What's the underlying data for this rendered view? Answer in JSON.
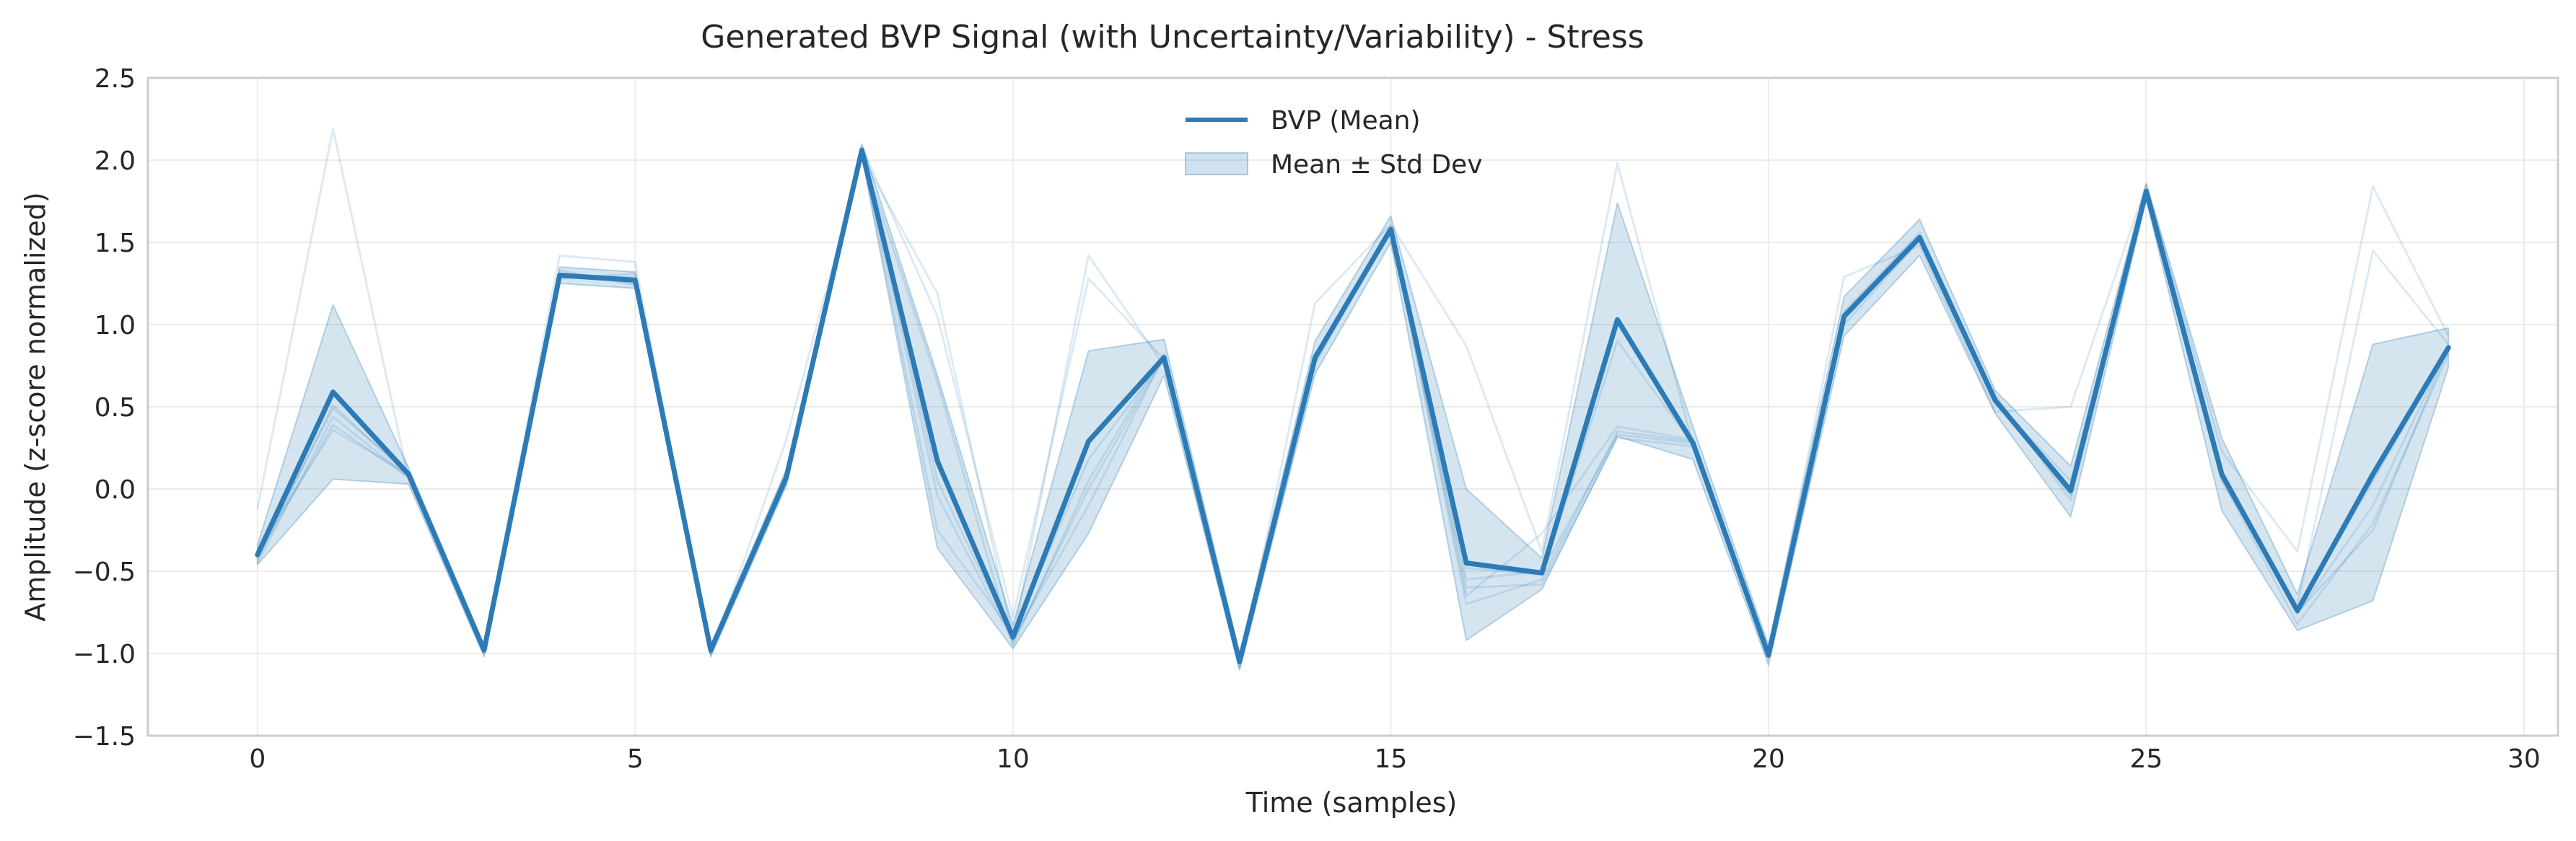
{
  "chart_data": {
    "type": "line",
    "title": "Generated BVP Signal (with Uncertainty/Variability) - Stress",
    "xlabel": "Time (samples)",
    "ylabel": "Amplitude (z-score normalized)",
    "xlim": [
      -1.45,
      30.45
    ],
    "ylim": [
      -1.5,
      2.5
    ],
    "xticks": [
      0,
      5,
      10,
      15,
      20,
      25,
      30
    ],
    "xtick_labels": [
      "0",
      "5",
      "10",
      "15",
      "20",
      "25",
      "30"
    ],
    "yticks": [
      -1.5,
      -1.0,
      -0.5,
      0.0,
      0.5,
      1.0,
      1.5,
      2.0,
      2.5
    ],
    "ytick_labels": [
      "−1.5",
      "−1.0",
      "−0.5",
      "0.0",
      "0.5",
      "1.0",
      "1.5",
      "2.0",
      "2.5"
    ],
    "grid": true,
    "legend_position": "top-center",
    "x": [
      0,
      1,
      2,
      3,
      4,
      5,
      6,
      7,
      8,
      9,
      10,
      11,
      12,
      13,
      14,
      15,
      16,
      17,
      18,
      19,
      20,
      21,
      22,
      23,
      24,
      25,
      26,
      27,
      28,
      29
    ],
    "series": [
      {
        "name": "BVP (Mean)",
        "color": "#2c7bb6",
        "values": [
          -0.4,
          0.59,
          0.09,
          -0.98,
          1.3,
          1.27,
          -0.98,
          0.07,
          2.06,
          0.17,
          -0.9,
          0.29,
          0.8,
          -1.05,
          0.8,
          1.58,
          -0.45,
          -0.51,
          1.03,
          0.28,
          -1.01,
          1.05,
          1.53,
          0.54,
          -0.01,
          1.81,
          0.09,
          -0.74,
          0.09,
          0.86
        ]
      },
      {
        "name": "Mean ± Std Dev",
        "type": "band",
        "color": "#2c7bb6",
        "upper": [
          -0.34,
          1.12,
          0.13,
          -0.95,
          1.35,
          1.32,
          -0.95,
          0.12,
          2.1,
          0.69,
          -0.83,
          0.84,
          0.91,
          -1.0,
          0.9,
          1.66,
          0.0,
          -0.42,
          1.74,
          0.38,
          -0.95,
          1.17,
          1.64,
          0.6,
          0.14,
          1.86,
          0.31,
          -0.64,
          0.88,
          0.98
        ],
        "lower": [
          -0.46,
          0.06,
          0.03,
          -1.02,
          1.25,
          1.22,
          -1.02,
          0.02,
          2.02,
          -0.36,
          -0.97,
          -0.27,
          0.69,
          -1.1,
          0.7,
          1.5,
          -0.92,
          -0.61,
          0.32,
          0.18,
          -1.07,
          0.93,
          1.42,
          0.46,
          -0.17,
          1.76,
          -0.13,
          -0.86,
          -0.68,
          0.74
        ]
      }
    ],
    "samples": [
      [
        -0.12,
        2.19,
        0.06,
        -0.97,
        1.42,
        1.38,
        -1.01,
        0.3,
        2.02,
        1.19,
        -0.91,
        1.42,
        0.75,
        -1.09,
        1.13,
        1.61,
        0.87,
        -0.38,
        1.98,
        0.27,
        -0.99,
        1.29,
        1.48,
        0.47,
        0.5,
        1.85,
        0.23,
        -0.38,
        1.84,
        0.93
      ],
      [
        -0.45,
        0.44,
        0.07,
        -0.99,
        1.28,
        1.31,
        -1.0,
        0.05,
        2.08,
        1.05,
        -0.78,
        1.28,
        0.79,
        -1.08,
        0.82,
        1.57,
        -0.65,
        -0.27,
        0.38,
        0.3,
        -1.02,
        1.08,
        1.56,
        0.53,
        0.05,
        1.81,
        0.05,
        -0.71,
        1.45,
        0.88
      ],
      [
        -0.41,
        0.39,
        0.07,
        -0.96,
        1.33,
        1.24,
        -1.0,
        0.09,
        2.04,
        0.65,
        -0.95,
        0.05,
        0.82,
        -1.03,
        0.76,
        1.59,
        -0.7,
        -0.55,
        0.35,
        0.29,
        -1.03,
        1.0,
        1.51,
        0.57,
        -0.07,
        1.79,
        0.06,
        -0.82,
        -0.21,
        0.82
      ],
      [
        -0.37,
        0.36,
        0.09,
        -1.0,
        1.3,
        1.27,
        -0.98,
        0.04,
        2.07,
        0.05,
        -0.91,
        -0.1,
        0.81,
        -1.06,
        0.79,
        1.58,
        -0.6,
        -0.58,
        0.31,
        0.26,
        -1.0,
        1.03,
        1.53,
        0.55,
        -0.04,
        1.82,
        0.08,
        -0.75,
        -0.25,
        0.86
      ],
      [
        -0.4,
        0.49,
        0.1,
        -0.98,
        1.29,
        1.29,
        -0.97,
        0.08,
        2.05,
        -0.25,
        -0.88,
        0.18,
        0.79,
        -1.04,
        0.81,
        1.58,
        -0.48,
        -0.52,
        0.9,
        0.27,
        -1.01,
        1.05,
        1.53,
        0.54,
        -0.02,
        1.8,
        0.08,
        -0.74,
        0.05,
        0.85
      ],
      [
        -0.43,
        0.51,
        0.08,
        -0.99,
        1.31,
        1.25,
        -0.99,
        0.07,
        2.06,
        -0.04,
        -0.93,
        0.0,
        0.8,
        -1.05,
        0.79,
        1.58,
        -0.55,
        -0.5,
        0.33,
        0.28,
        -1.01,
        1.04,
        1.53,
        0.54,
        -0.03,
        1.81,
        0.09,
        -0.76,
        -0.1,
        0.86
      ]
    ],
    "legend": {
      "line_label": "BVP (Mean)",
      "band_label": "Mean ± Std Dev"
    }
  }
}
